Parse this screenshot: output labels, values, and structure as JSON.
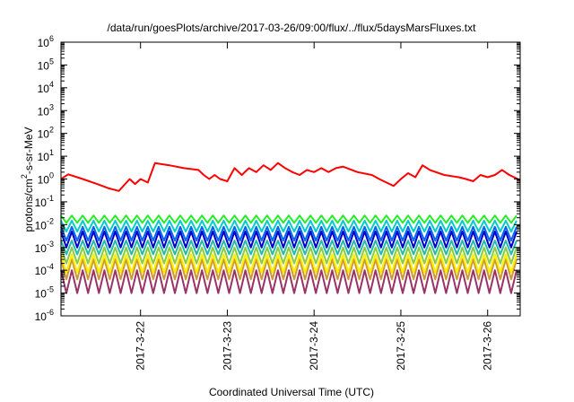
{
  "chart_data": {
    "type": "line",
    "title": "/data/run/goesPlots/archive/2017-03-26/09:00/flux/../flux/5daysMarsFluxes.txt",
    "xlabel": "Coordinated Universal Time (UTC)",
    "ylabel": {
      "base": "protons/cm",
      "sup": "2",
      "rest": "-s-sr-MeV"
    },
    "yscale": "log",
    "ylim": [
      1e-06,
      1000000.0
    ],
    "yticks": [
      {
        "base": "10",
        "exp": "-6",
        "value": 1e-06
      },
      {
        "base": "10",
        "exp": "-5",
        "value": 1e-05
      },
      {
        "base": "10",
        "exp": "-4",
        "value": 0.0001
      },
      {
        "base": "10",
        "exp": "-3",
        "value": 0.001
      },
      {
        "base": "10",
        "exp": "-2",
        "value": 0.01
      },
      {
        "base": "10",
        "exp": "-1",
        "value": 0.1
      },
      {
        "base": "10",
        "exp": "0",
        "value": 1
      },
      {
        "base": "10",
        "exp": "1",
        "value": 10
      },
      {
        "base": "10",
        "exp": "2",
        "value": 100
      },
      {
        "base": "10",
        "exp": "3",
        "value": 1000
      },
      {
        "base": "10",
        "exp": "4",
        "value": 10000
      },
      {
        "base": "10",
        "exp": "5",
        "value": 100000
      },
      {
        "base": "10",
        "exp": "6",
        "value": 1000000
      }
    ],
    "xlim": [
      "2017-03-21T02:00",
      "2017-03-26T09:00"
    ],
    "xticks": [
      {
        "label": "2017-3-22",
        "value": "2017-03-22T00:00"
      },
      {
        "label": "2017-3-23",
        "value": "2017-03-23T00:00"
      },
      {
        "label": "2017-3-24",
        "value": "2017-03-24T00:00"
      },
      {
        "label": "2017-3-25",
        "value": "2017-03-25T00:00"
      },
      {
        "label": "2017-3-26",
        "value": "2017-03-26T00:00"
      }
    ],
    "grid": false,
    "legend": "none",
    "series": [
      {
        "color": "#ff0000",
        "x": [
          "2017-03-21T02:00",
          "2017-03-21T04:00",
          "2017-03-21T08:00",
          "2017-03-21T12:00",
          "2017-03-21T15:00",
          "2017-03-21T18:00",
          "2017-03-21T21:00",
          "2017-03-21T22:30",
          "2017-03-22T00:00",
          "2017-03-22T02:00",
          "2017-03-22T04:00",
          "2017-03-22T08:00",
          "2017-03-22T12:00",
          "2017-03-22T16:00",
          "2017-03-22T17:30",
          "2017-03-22T19:00",
          "2017-03-22T20:30",
          "2017-03-22T22:00",
          "2017-03-23T00:00",
          "2017-03-23T02:00",
          "2017-03-23T04:00",
          "2017-03-23T06:00",
          "2017-03-23T08:00",
          "2017-03-23T10:00",
          "2017-03-23T12:00",
          "2017-03-23T14:00",
          "2017-03-23T16:00",
          "2017-03-23T18:00",
          "2017-03-23T20:00",
          "2017-03-23T22:00",
          "2017-03-24T00:00",
          "2017-03-24T02:00",
          "2017-03-24T04:00",
          "2017-03-24T06:00",
          "2017-03-24T08:00",
          "2017-03-24T12:00",
          "2017-03-24T16:00",
          "2017-03-24T18:00",
          "2017-03-24T20:00",
          "2017-03-24T22:00",
          "2017-03-25T00:00",
          "2017-03-25T02:00",
          "2017-03-25T04:00",
          "2017-03-25T06:00",
          "2017-03-25T08:00",
          "2017-03-25T12:00",
          "2017-03-25T16:00",
          "2017-03-25T18:00",
          "2017-03-25T20:00",
          "2017-03-25T22:00",
          "2017-03-26T00:00",
          "2017-03-26T02:00",
          "2017-03-26T04:00",
          "2017-03-26T06:00",
          "2017-03-26T09:00"
        ],
        "y": [
          1.0,
          1.6,
          1.0,
          0.6,
          0.4,
          0.3,
          1.0,
          0.6,
          1.0,
          0.7,
          5.0,
          4.0,
          3.0,
          2.5,
          1.5,
          1.0,
          1.5,
          1.0,
          0.8,
          3.0,
          1.5,
          3.0,
          2.0,
          4.0,
          2.5,
          5.0,
          3.0,
          2.0,
          1.5,
          2.5,
          2.0,
          3.0,
          2.0,
          3.0,
          3.5,
          2.0,
          1.5,
          1.0,
          0.7,
          0.5,
          1.0,
          1.8,
          1.2,
          4.0,
          2.5,
          1.5,
          1.2,
          1.0,
          0.8,
          1.5,
          1.2,
          1.5,
          2.5,
          1.5,
          0.9
        ]
      },
      {
        "color": "#22ee22",
        "x": [
          "2017-03-21T02:00",
          "2017-03-26T09:00"
        ],
        "y": [
          0.025,
          0.025
        ],
        "pattern": "sawtooth",
        "period_hours": 3,
        "low": 0.012
      },
      {
        "color": "#00cccc",
        "x": [
          "2017-03-21T02:00",
          "2017-03-26T09:00"
        ],
        "y": [
          0.015,
          0.015
        ],
        "pattern": "sawtooth",
        "period_hours": 3,
        "low": 0.005
      },
      {
        "color": "#0066ee",
        "x": [
          "2017-03-21T02:00",
          "2017-03-26T09:00"
        ],
        "y": [
          0.008,
          0.008
        ],
        "pattern": "sawtooth",
        "period_hours": 3,
        "low": 0.002
      },
      {
        "color": "#0000cc",
        "x": [
          "2017-03-21T02:00",
          "2017-03-26T09:00"
        ],
        "y": [
          0.005,
          0.005
        ],
        "pattern": "sawtooth",
        "period_hours": 3,
        "low": 0.001
      },
      {
        "color": "#22bbaa",
        "x": [
          "2017-03-21T02:00",
          "2017-03-26T09:00"
        ],
        "y": [
          0.002,
          0.002
        ],
        "pattern": "sawtooth",
        "period_hours": 3,
        "low": 0.0005
      },
      {
        "color": "#88cc44",
        "x": [
          "2017-03-21T02:00",
          "2017-03-26T09:00"
        ],
        "y": [
          0.001,
          0.001
        ],
        "pattern": "sawtooth",
        "period_hours": 3,
        "low": 0.0002
      },
      {
        "color": "#ffee00",
        "x": [
          "2017-03-21T02:00",
          "2017-03-26T09:00"
        ],
        "y": [
          0.0005,
          0.0005
        ],
        "pattern": "sawtooth",
        "period_hours": 3,
        "low": 8e-05
      },
      {
        "color": "#cc9933",
        "x": [
          "2017-03-21T02:00",
          "2017-03-26T09:00"
        ],
        "y": [
          0.0003,
          0.0003
        ],
        "pattern": "sawtooth",
        "period_hours": 3,
        "low": 4e-05
      },
      {
        "color": "#993366",
        "x": [
          "2017-03-21T02:00",
          "2017-03-26T09:00"
        ],
        "y": [
          0.0001,
          0.0001
        ],
        "pattern": "sawtooth",
        "period_hours": 3,
        "low": 1e-05
      }
    ]
  }
}
